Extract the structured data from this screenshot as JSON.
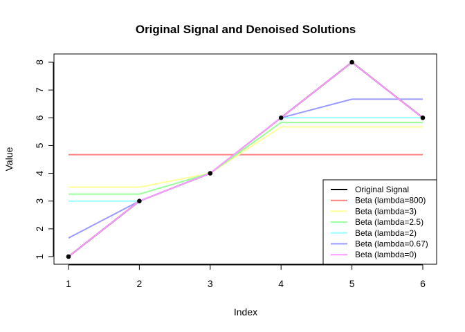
{
  "chart_data": {
    "type": "line",
    "title": "Original Signal and Denoised Solutions",
    "xlabel": "Index",
    "ylabel": "Value",
    "x": [
      1,
      2,
      3,
      4,
      5,
      6
    ],
    "xlim": [
      1,
      6
    ],
    "ylim": [
      1,
      8
    ],
    "xticks": [
      "1",
      "2",
      "3",
      "4",
      "5",
      "6"
    ],
    "yticks": [
      "1",
      "2",
      "3",
      "4",
      "5",
      "6",
      "7",
      "8"
    ],
    "grid": false,
    "legend_position": "bottom-right",
    "series": [
      {
        "name": "Original Signal",
        "color": "#000000",
        "values": [
          1,
          3,
          4,
          6,
          8,
          6
        ],
        "points": true
      },
      {
        "name": "Beta (lambda=800)",
        "color": "#ff8080",
        "values": [
          4.67,
          4.67,
          4.67,
          4.67,
          4.67,
          4.67
        ]
      },
      {
        "name": "Beta (lambda=3)",
        "color": "#ffff99",
        "values": [
          3.5,
          3.5,
          4,
          5.67,
          5.67,
          5.67
        ]
      },
      {
        "name": "Beta (lambda=2.5)",
        "color": "#99ff99",
        "values": [
          3.25,
          3.25,
          4,
          5.83,
          5.83,
          5.83
        ]
      },
      {
        "name": "Beta (lambda=2)",
        "color": "#99ffff",
        "values": [
          3,
          3,
          4,
          6,
          6,
          6
        ]
      },
      {
        "name": "Beta (lambda=0.67)",
        "color": "#9999ff",
        "values": [
          1.67,
          3,
          4,
          6,
          6.67,
          6.67
        ]
      },
      {
        "name": "Beta (lambda=0)",
        "color": "#ff99ff",
        "values": [
          1,
          3,
          4,
          6,
          8,
          6
        ]
      }
    ]
  }
}
